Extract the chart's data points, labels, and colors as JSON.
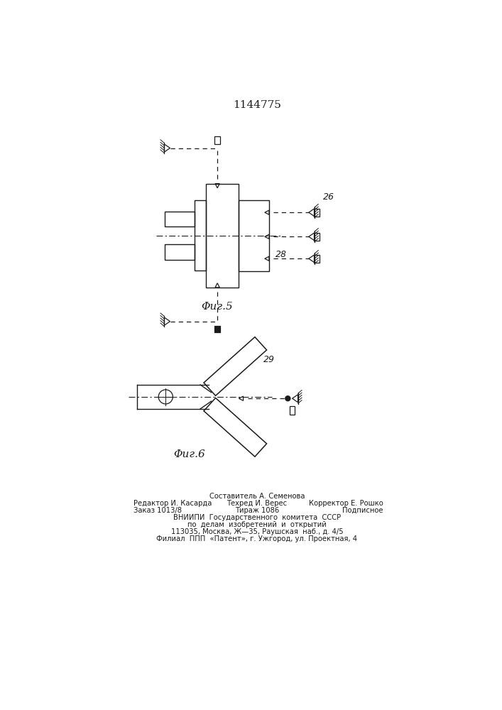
{
  "title": "1144775",
  "fig5_label": "Φиг.5",
  "fig6_label": "Φиг.6",
  "label_26": "26",
  "label_28": "28",
  "label_29": "29",
  "bg_color": "#ffffff",
  "line_color": "#1a1a1a",
  "footer_col1_line1": "Редактор И. Касарда",
  "footer_col1_line2": "Заказ 1013/8",
  "footer_col2_line0": "Составитель А. Семенова",
  "footer_col2_line1": "Техред И. Верес",
  "footer_col2_line2": "Тираж 1086",
  "footer_col3_line1": "Корректор Е. Рошко",
  "footer_col3_line2": "Подписное",
  "footer_vniip1": "ВНИИПИ  Государственного  комитета  СССР",
  "footer_vniip2": "по  делам  изобретений  и  открытий",
  "footer_addr1": "113035, Москва, Ж—35, Раушская  наб., д. 4/5",
  "footer_addr2": "Филиал  ППП  «Патент», г. Ужгород, ул. Проектная, 4"
}
